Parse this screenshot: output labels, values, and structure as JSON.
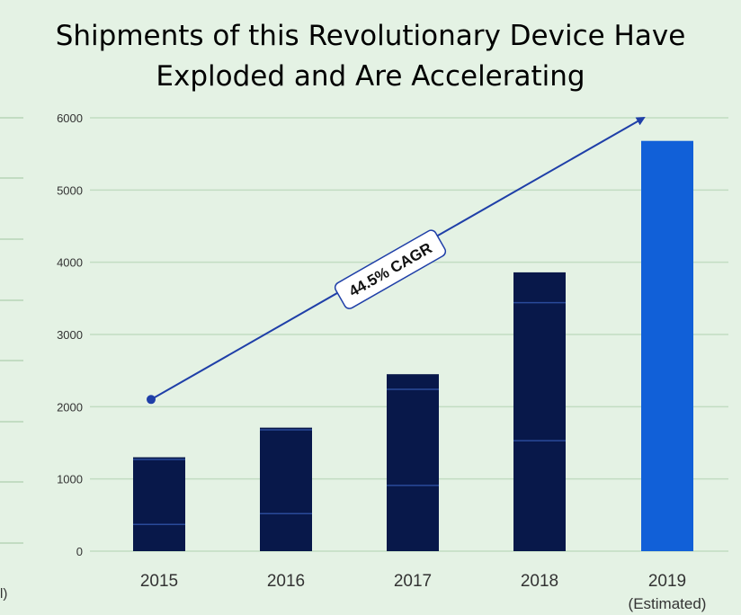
{
  "title_line1": "Shipments of this Revolutionary Device Have",
  "title_line2": "Exploded and Are Accelerating",
  "left_fragment": "l)",
  "colors": {
    "background": "#e4f2e4",
    "bar_actual": "#08184a",
    "bar_estimated": "#1160d8",
    "segment_line": "#2a4a9a",
    "gridline": "#c2dcc2",
    "arrow": "#1f3fa8"
  },
  "chart_data": {
    "type": "bar",
    "title": "Shipments of this Revolutionary Device Have Exploded and Are Accelerating",
    "categories": [
      "2015",
      "2016",
      "2017",
      "2018",
      "2019"
    ],
    "category_sublabels": [
      "",
      "",
      "",
      "",
      "(Estimated)"
    ],
    "values": [
      1300,
      1710,
      2450,
      3860,
      5680
    ],
    "estimated": [
      false,
      false,
      false,
      false,
      true
    ],
    "segment_boundaries": [
      [
        370,
        1270
      ],
      [
        520,
        1680
      ],
      [
        910,
        2240
      ],
      [
        1530,
        3440
      ],
      []
    ],
    "ylim": [
      0,
      6000
    ],
    "yticks": [
      0,
      1000,
      2000,
      3000,
      4000,
      5000,
      6000
    ],
    "grid": true,
    "annotation": {
      "text": "44.5% CAGR",
      "start": {
        "x": "2015",
        "y": 2100
      },
      "end": {
        "x": "2019",
        "y": 6000
      }
    }
  }
}
